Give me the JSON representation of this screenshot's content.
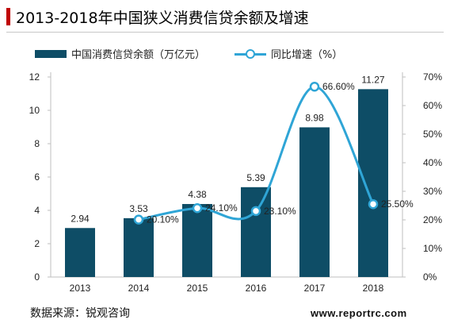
{
  "title": "2013-2018年中国狭义消费信贷余额及增速",
  "source": "数据来源：锐观咨询",
  "watermark": "www.reportrc.com",
  "colors": {
    "bar": "#0e4d66",
    "line": "#2fa5d6",
    "title_accent": "#c00000"
  },
  "chart_data": {
    "type": "bar",
    "title": "2013-2018年中国狭义消费信贷余额及增速",
    "categories": [
      "2013",
      "2014",
      "2015",
      "2016",
      "2017",
      "2018"
    ],
    "series": [
      {
        "name": "中国消费信贷余额（万亿元）",
        "type": "bar",
        "axis": "left",
        "values": [
          2.94,
          3.53,
          4.38,
          5.39,
          8.98,
          11.27
        ],
        "labels": [
          "2.94",
          "3.53",
          "4.38",
          "5.39",
          "8.98",
          "11.27"
        ]
      },
      {
        "name": "同比增速（%）",
        "type": "line",
        "axis": "right",
        "values": [
          null,
          20.1,
          24.1,
          23.1,
          66.6,
          25.5
        ],
        "labels": [
          "",
          "20.10%",
          "24.10%",
          "23.10%",
          "66.60%",
          "25.50%"
        ]
      }
    ],
    "y_left": {
      "min": 0,
      "max": 12,
      "ticks": [
        "0",
        "2",
        "4",
        "6",
        "8",
        "10",
        "12"
      ]
    },
    "y_right": {
      "min": 0,
      "max": 70,
      "ticks": [
        "0%",
        "10%",
        "20%",
        "30%",
        "40%",
        "50%",
        "60%",
        "70%"
      ]
    },
    "grid": false,
    "legend": "top-left"
  }
}
